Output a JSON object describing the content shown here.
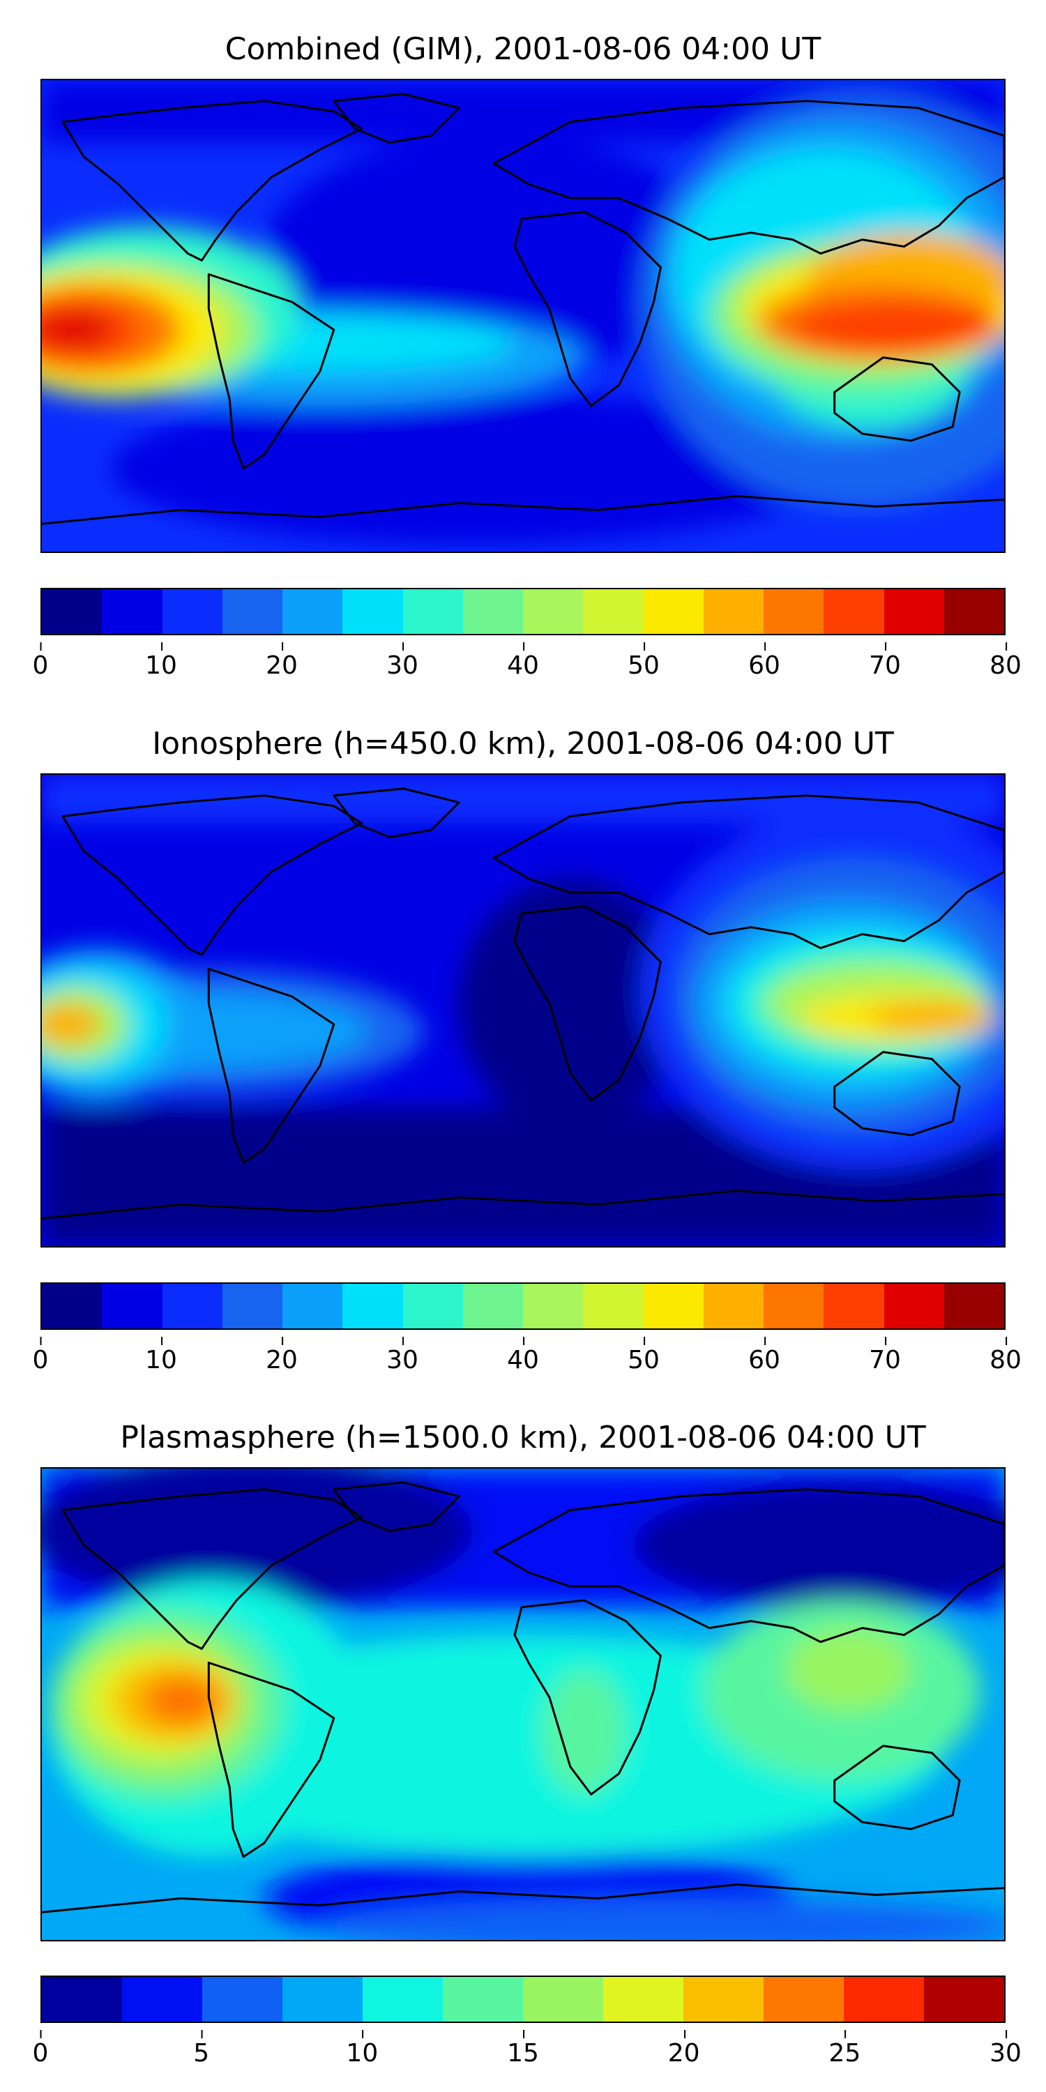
{
  "panels": [
    {
      "title": "Combined (GIM), 2001-08-06 04:00 UT",
      "colorbar": {
        "min": 0,
        "max": 80,
        "ticks": [
          "0",
          "10",
          "20",
          "30",
          "40",
          "50",
          "60",
          "70",
          "80"
        ],
        "colors": [
          "#00008b",
          "#0000e5",
          "#0a2dfd",
          "#1664f0",
          "#0aa0fa",
          "#00e0fa",
          "#2cf5cc",
          "#6ef590",
          "#a8f55c",
          "#d2f532",
          "#fbe900",
          "#fdb000",
          "#fd7600",
          "#fd4000",
          "#e00000",
          "#980000"
        ]
      }
    },
    {
      "title": "Ionosphere  (h=450.0 km), 2001-08-06 04:00 UT",
      "colorbar": {
        "min": 0,
        "max": 80,
        "ticks": [
          "0",
          "10",
          "20",
          "30",
          "40",
          "50",
          "60",
          "70",
          "80"
        ],
        "colors": [
          "#00008b",
          "#0000e5",
          "#0a2dfd",
          "#1664f0",
          "#0aa0fa",
          "#00e0fa",
          "#2cf5cc",
          "#6ef590",
          "#a8f55c",
          "#d2f532",
          "#fbe900",
          "#fdb000",
          "#fd7600",
          "#fd4000",
          "#e00000",
          "#980000"
        ]
      }
    },
    {
      "title": "Plasmasphere (h=1500.0 km), 2001-08-06 04:00 UT",
      "colorbar": {
        "min": 0,
        "max": 30,
        "ticks": [
          "0",
          "5",
          "10",
          "15",
          "20",
          "25",
          "30"
        ],
        "colors": [
          "#00009f",
          "#0010f5",
          "#1060f5",
          "#00a8f5",
          "#10f5e0",
          "#58f5a0",
          "#98f560",
          "#e0f520",
          "#fbbe00",
          "#fd7800",
          "#fd2a00",
          "#b00000"
        ]
      }
    }
  ]
}
